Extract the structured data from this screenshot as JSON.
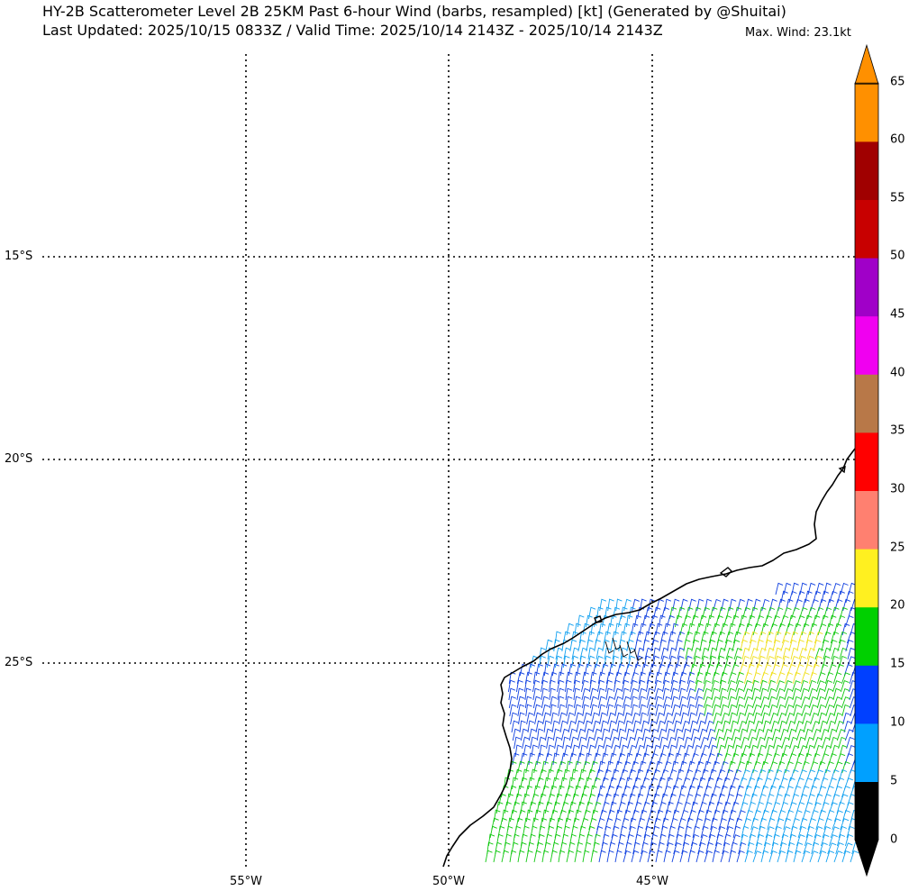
{
  "header": {
    "title_line1": "HY-2B Scatterometer Level 2B 25KM Past 6-hour Wind (barbs, resampled) [kt] (Generated by @Shuitai)",
    "title_line2": "Last Updated: 2025/10/15 0833Z / Valid Time: 2025/10/14 2143Z - 2025/10/14 2143Z",
    "max_wind": "Max. Wind: 23.1kt"
  },
  "map": {
    "lat_labels": [
      "15°S",
      "20°S",
      "25°S"
    ],
    "lon_labels": [
      "55°W",
      "50°W",
      "45°W"
    ],
    "grid_style": "dotted",
    "projection": "lat-lon"
  },
  "colorbar": {
    "ticks": [
      "0",
      "5",
      "10",
      "15",
      "20",
      "25",
      "30",
      "35",
      "40",
      "45",
      "50",
      "55",
      "60",
      "65"
    ],
    "colors": [
      "#000000",
      "#00a0ff",
      "#0040ff",
      "#00d000",
      "#fff020",
      "#ff8070",
      "#ff0000",
      "#b87848",
      "#f000f0",
      "#a000c8",
      "#c80000",
      "#a00000",
      "#ff9000"
    ],
    "extend": "both"
  },
  "wind": {
    "units": "kt",
    "max_speed": 23.1
  }
}
